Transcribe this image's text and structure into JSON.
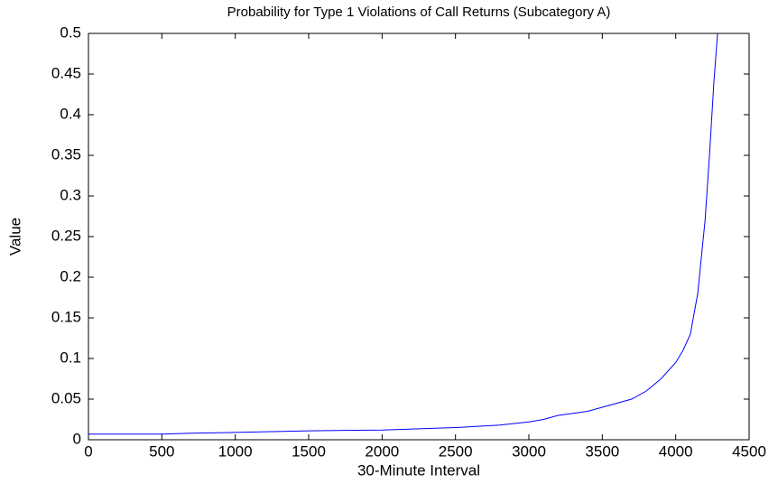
{
  "chart_data": {
    "type": "line",
    "title": "Probability for Type 1 Violations of Call Returns (Subcategory A)",
    "x_label": "30-Minute Interval",
    "y_label": "Value",
    "x": [
      0,
      100,
      500,
      700,
      1000,
      1500,
      2000,
      2500,
      2800,
      3000,
      3100,
      3200,
      3400,
      3500,
      3600,
      3700,
      3800,
      3900,
      4000,
      4050,
      4100,
      4150,
      4200,
      4230,
      4260,
      4285
    ],
    "series": [
      {
        "name": "Value",
        "color": "#0000ff",
        "values": [
          0.007,
          0.007,
          0.007,
          0.008,
          0.009,
          0.011,
          0.012,
          0.015,
          0.018,
          0.022,
          0.025,
          0.03,
          0.035,
          0.04,
          0.045,
          0.05,
          0.06,
          0.075,
          0.095,
          0.11,
          0.13,
          0.18,
          0.27,
          0.35,
          0.44,
          0.5
        ]
      }
    ],
    "xlim": [
      0,
      4500
    ],
    "ylim": [
      0,
      0.5
    ],
    "xticks": [
      0,
      500,
      1000,
      1500,
      2000,
      2500,
      3000,
      3500,
      4000,
      4500
    ],
    "yticks": [
      0,
      0.05,
      0.1,
      0.15,
      0.2,
      0.25,
      0.3,
      0.35,
      0.4,
      0.45,
      0.5
    ],
    "grid": false
  }
}
